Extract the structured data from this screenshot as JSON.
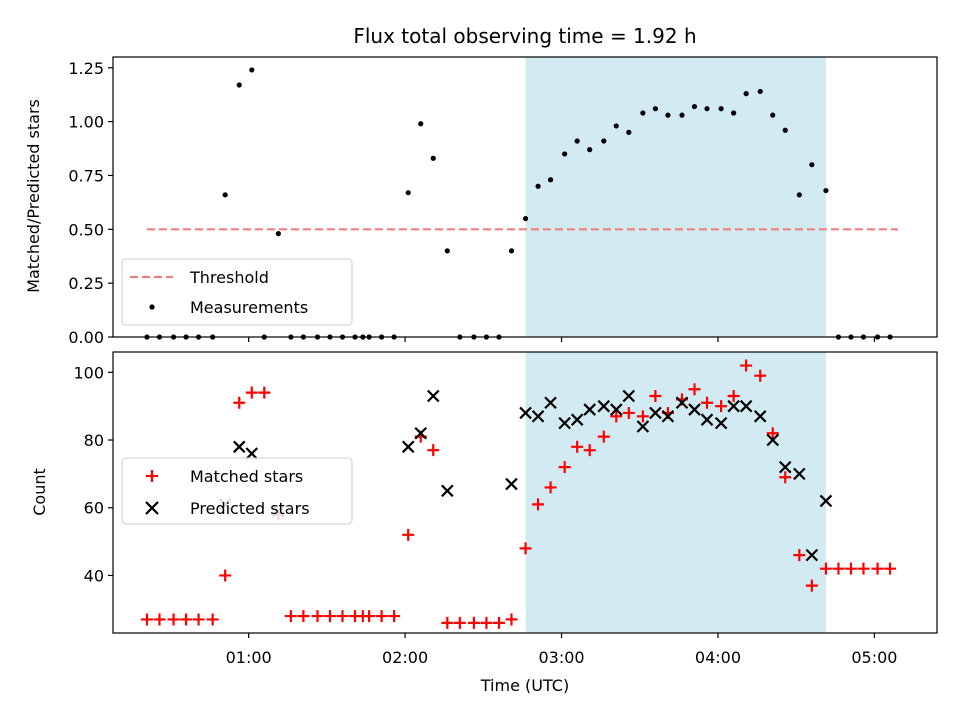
{
  "chart_data": {
    "title": "Flux total observing time = 1.92 h",
    "xlabel": "Time (UTC)",
    "xlim": [
      0.133,
      5.4
    ],
    "x_ticks": [
      1,
      2,
      3,
      4,
      5
    ],
    "x_tick_labels": [
      "01:00",
      "02:00",
      "03:00",
      "04:00",
      "05:00"
    ],
    "shaded_span": [
      2.77,
      4.69
    ],
    "shade_color": "#add8e6",
    "panels": [
      {
        "name": "ratio",
        "type": "scatter",
        "ylabel": "Matched/Predicted stars",
        "ylim": [
          0,
          1.3
        ],
        "y_ticks": [
          0,
          0.25,
          0.5,
          0.75,
          1.0,
          1.25
        ],
        "y_tick_labels": [
          "0.00",
          "0.25",
          "0.50",
          "0.75",
          "1.00",
          "1.25"
        ],
        "threshold": {
          "label": "Threshold",
          "value": 0.5,
          "x": [
            0.35,
            5.15
          ],
          "color": "#f08080"
        },
        "measurements": {
          "label": "Measurements",
          "color": "#000000",
          "x": [
            0.35,
            0.43,
            0.52,
            0.6,
            0.68,
            0.77,
            0.85,
            0.94,
            1.02,
            1.1,
            1.19,
            1.27,
            1.35,
            1.44,
            1.52,
            1.6,
            1.68,
            1.73,
            1.77,
            1.85,
            1.93,
            2.02,
            2.1,
            2.18,
            2.27,
            2.35,
            2.44,
            2.52,
            2.6,
            2.68,
            2.77,
            2.85,
            2.93,
            3.02,
            3.1,
            3.18,
            3.27,
            3.35,
            3.43,
            3.52,
            3.6,
            3.68,
            3.77,
            3.85,
            3.93,
            4.02,
            4.1,
            4.18,
            4.27,
            4.35,
            4.43,
            4.52,
            4.6,
            4.69,
            4.77,
            4.85,
            4.93,
            5.02,
            5.1
          ],
          "y": [
            0,
            0,
            0,
            0,
            0,
            0,
            0.66,
            1.17,
            1.24,
            0,
            0.48,
            0,
            0,
            0,
            0,
            0,
            0,
            0,
            0,
            0,
            0,
            0.67,
            0.99,
            0.83,
            0.4,
            0,
            0,
            0,
            0,
            0.4,
            0.55,
            0.7,
            0.73,
            0.85,
            0.91,
            0.87,
            0.91,
            0.98,
            0.95,
            1.04,
            1.06,
            1.03,
            1.03,
            1.07,
            1.06,
            1.06,
            1.04,
            1.13,
            1.14,
            1.03,
            0.96,
            0.66,
            0.8,
            0.68,
            0,
            0,
            0,
            0,
            0
          ]
        }
      },
      {
        "name": "counts",
        "type": "scatter",
        "ylabel": "Count",
        "ylim": [
          23,
          106
        ],
        "y_ticks": [
          40,
          60,
          80,
          100
        ],
        "y_tick_labels": [
          "40",
          "60",
          "80",
          "100"
        ],
        "matched": {
          "label": "Matched stars",
          "color": "#ff0000",
          "x": [
            0.35,
            0.43,
            0.52,
            0.6,
            0.68,
            0.77,
            0.85,
            0.94,
            1.02,
            1.1,
            1.19,
            1.27,
            1.35,
            1.44,
            1.52,
            1.6,
            1.68,
            1.73,
            1.77,
            1.85,
            1.93,
            2.02,
            2.1,
            2.18,
            2.27,
            2.35,
            2.44,
            2.52,
            2.6,
            2.68,
            2.77,
            2.85,
            2.93,
            3.02,
            3.1,
            3.18,
            3.27,
            3.35,
            3.43,
            3.52,
            3.6,
            3.68,
            3.77,
            3.85,
            3.93,
            4.02,
            4.1,
            4.18,
            4.27,
            4.35,
            4.43,
            4.52,
            4.6,
            4.69,
            4.77,
            4.85,
            4.93,
            5.02,
            5.1
          ],
          "y": [
            27,
            27,
            27,
            27,
            27,
            27,
            40,
            91,
            94,
            94,
            58,
            28,
            28,
            28,
            28,
            28,
            28,
            28,
            28,
            28,
            28,
            52,
            81,
            77,
            26,
            26,
            26,
            26,
            26,
            27,
            48,
            61,
            66,
            72,
            78,
            77,
            81,
            87,
            88,
            87,
            93,
            88,
            92,
            95,
            91,
            90,
            93,
            102,
            99,
            82,
            69,
            46,
            37,
            42,
            42,
            42,
            42,
            42,
            42
          ]
        },
        "predicted": {
          "label": "Predicted stars",
          "color": "#000000",
          "x": [
            0.85,
            0.94,
            1.02,
            1.19,
            2.02,
            2.1,
            2.18,
            2.27,
            2.68,
            2.77,
            2.85,
            2.93,
            3.02,
            3.1,
            3.18,
            3.27,
            3.35,
            3.43,
            3.52,
            3.6,
            3.68,
            3.77,
            3.85,
            3.93,
            4.02,
            4.1,
            4.18,
            4.27,
            4.35,
            4.43,
            4.52,
            4.6,
            4.69
          ],
          "y": [
            61,
            78,
            76,
            59,
            78,
            82,
            93,
            65,
            67,
            88,
            87,
            91,
            85,
            86,
            89,
            90,
            89,
            93,
            84,
            88,
            87,
            91,
            89,
            86,
            85,
            90,
            90,
            87,
            80,
            72,
            70,
            46,
            62
          ]
        }
      }
    ]
  }
}
